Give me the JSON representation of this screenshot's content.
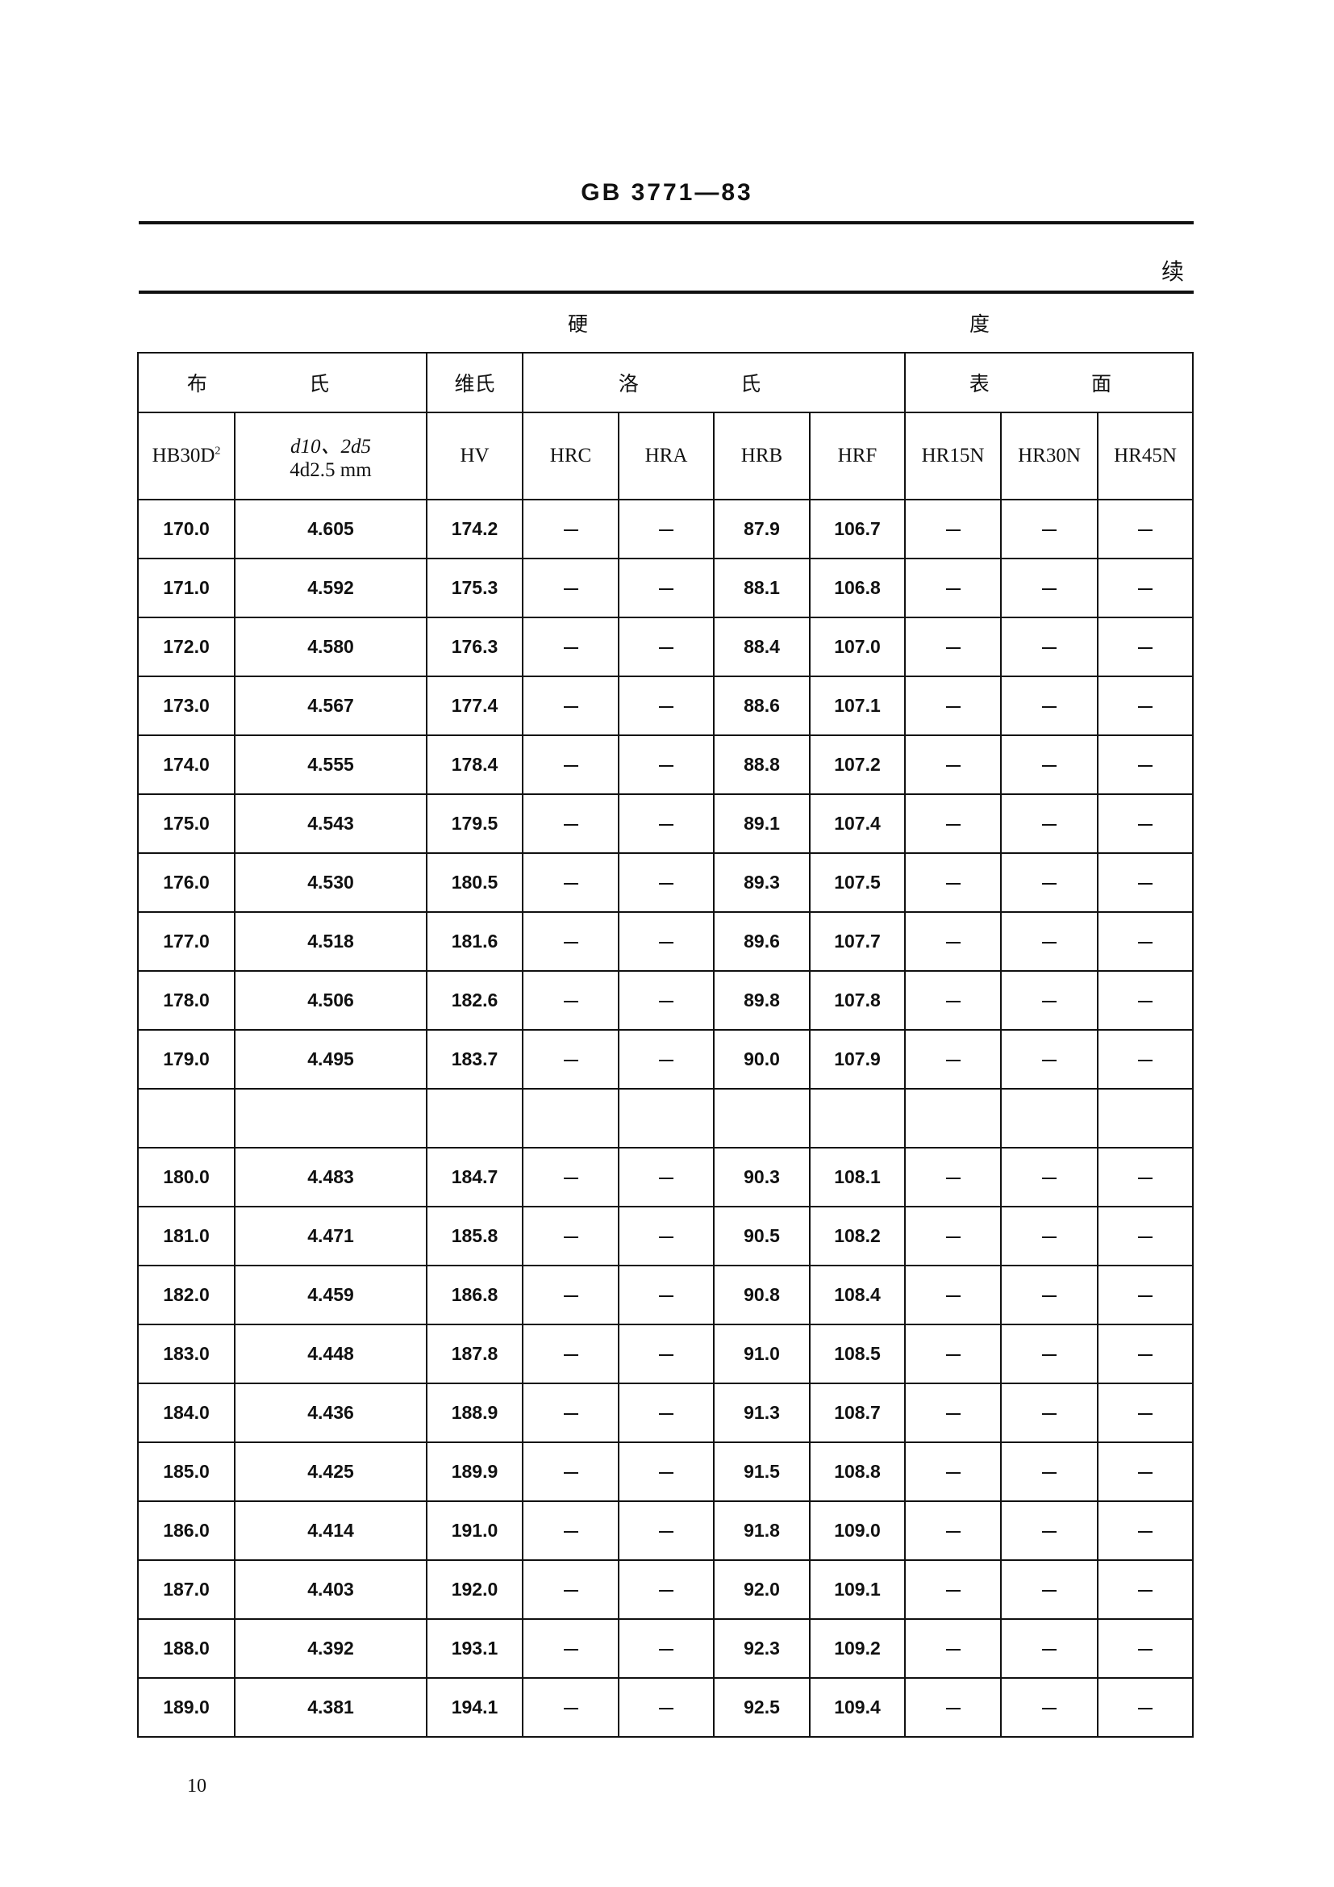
{
  "header": {
    "standard": "GB 3771—83",
    "continued": "续"
  },
  "table": {
    "top_header": [
      "硬",
      "度"
    ],
    "group_headers": {
      "brinell": "布 氏",
      "vickers": "维氏",
      "rockwell": "洛 氏",
      "surface": "表 面"
    },
    "columns": {
      "hb": "HB30D",
      "hb_sup": "2",
      "d_line1": "d10、2d5",
      "d_line2": "4d2.5 mm",
      "hv": "HV",
      "hrc": "HRC",
      "hra": "HRA",
      "hrb": "HRB",
      "hrf": "HRF",
      "hr15n": "HR15N",
      "hr30n": "HR30N",
      "hr45n": "HR45N"
    },
    "rows_block1": [
      [
        "170.0",
        "4.605",
        "174.2",
        "—",
        "—",
        "87.9",
        "106.7",
        "—",
        "—",
        "—"
      ],
      [
        "171.0",
        "4.592",
        "175.3",
        "—",
        "—",
        "88.1",
        "106.8",
        "—",
        "—",
        "—"
      ],
      [
        "172.0",
        "4.580",
        "176.3",
        "—",
        "—",
        "88.4",
        "107.0",
        "—",
        "—",
        "—"
      ],
      [
        "173.0",
        "4.567",
        "177.4",
        "—",
        "—",
        "88.6",
        "107.1",
        "—",
        "—",
        "—"
      ],
      [
        "174.0",
        "4.555",
        "178.4",
        "—",
        "—",
        "88.8",
        "107.2",
        "—",
        "—",
        "—"
      ],
      [
        "175.0",
        "4.543",
        "179.5",
        "—",
        "—",
        "89.1",
        "107.4",
        "—",
        "—",
        "—"
      ],
      [
        "176.0",
        "4.530",
        "180.5",
        "—",
        "—",
        "89.3",
        "107.5",
        "—",
        "—",
        "—"
      ],
      [
        "177.0",
        "4.518",
        "181.6",
        "—",
        "—",
        "89.6",
        "107.7",
        "—",
        "—",
        "—"
      ],
      [
        "178.0",
        "4.506",
        "182.6",
        "—",
        "—",
        "89.8",
        "107.8",
        "—",
        "—",
        "—"
      ],
      [
        "179.0",
        "4.495",
        "183.7",
        "—",
        "—",
        "90.0",
        "107.9",
        "—",
        "—",
        "—"
      ]
    ],
    "rows_block2": [
      [
        "180.0",
        "4.483",
        "184.7",
        "—",
        "—",
        "90.3",
        "108.1",
        "—",
        "—",
        "—"
      ],
      [
        "181.0",
        "4.471",
        "185.8",
        "—",
        "—",
        "90.5",
        "108.2",
        "—",
        "—",
        "—"
      ],
      [
        "182.0",
        "4.459",
        "186.8",
        "—",
        "—",
        "90.8",
        "108.4",
        "—",
        "—",
        "—"
      ],
      [
        "183.0",
        "4.448",
        "187.8",
        "—",
        "—",
        "91.0",
        "108.5",
        "—",
        "—",
        "—"
      ],
      [
        "184.0",
        "4.436",
        "188.9",
        "—",
        "—",
        "91.3",
        "108.7",
        "—",
        "—",
        "—"
      ],
      [
        "185.0",
        "4.425",
        "189.9",
        "—",
        "—",
        "91.5",
        "108.8",
        "—",
        "—",
        "—"
      ],
      [
        "186.0",
        "4.414",
        "191.0",
        "—",
        "—",
        "91.8",
        "109.0",
        "—",
        "—",
        "—"
      ],
      [
        "187.0",
        "4.403",
        "192.0",
        "—",
        "—",
        "92.0",
        "109.1",
        "—",
        "—",
        "—"
      ],
      [
        "188.0",
        "4.392",
        "193.1",
        "—",
        "—",
        "92.3",
        "109.2",
        "—",
        "—",
        "—"
      ],
      [
        "189.0",
        "4.381",
        "194.1",
        "—",
        "—",
        "92.5",
        "109.4",
        "—",
        "—",
        "—"
      ]
    ]
  },
  "footer": {
    "page_number": "10"
  }
}
